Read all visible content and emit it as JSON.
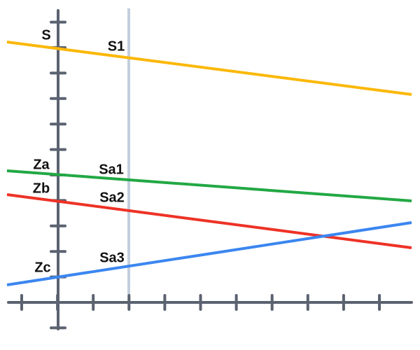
{
  "labels": {
    "yellow_axis": "S",
    "yellow_cut": "S1",
    "green_axis": "Za",
    "green_cut": "Sa1",
    "red_axis": "Zb",
    "red_cut": "Sa2",
    "blue_axis": "Zc",
    "blue_cut": "Sa3"
  }
}
